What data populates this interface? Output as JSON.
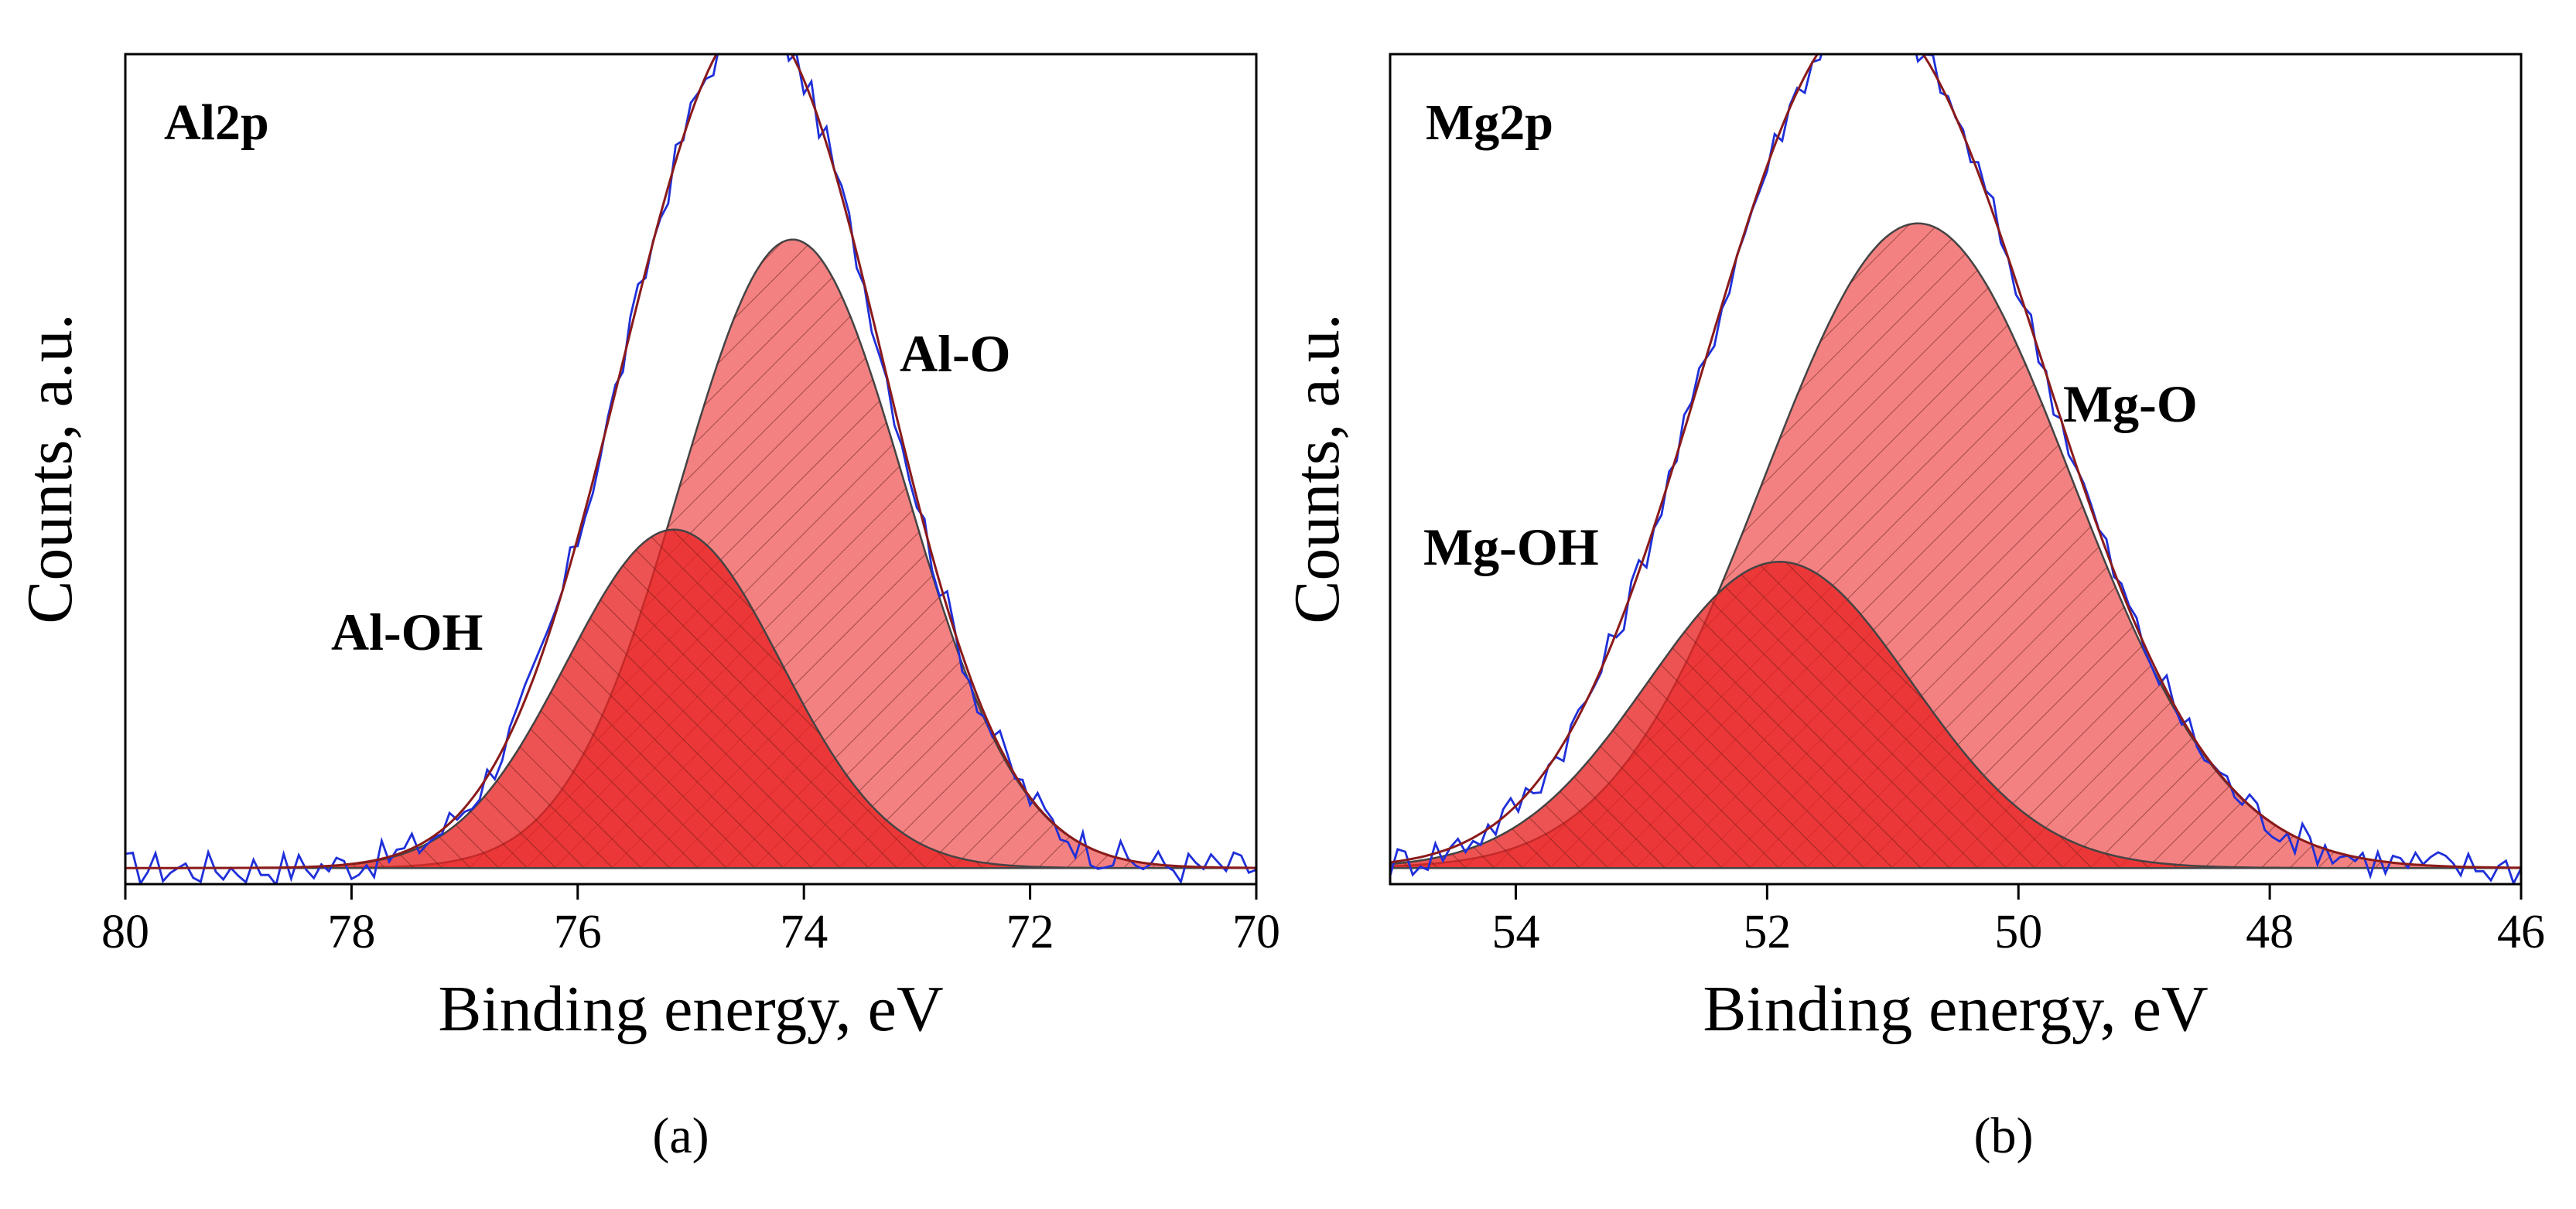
{
  "colors": {
    "measured": "#1f2fd9",
    "envelope": "#8b1a1a",
    "component_fill": "#f26b6b",
    "overlap_fill": "#e82222",
    "component_edge": "#444444",
    "axis": "#000000"
  },
  "chart_data": [
    {
      "type": "line",
      "panel_label": "(a)",
      "title": "Al2p",
      "xlabel": "Binding energy, eV",
      "ylabel": "Counts, a.u.",
      "xlim": [
        80,
        70
      ],
      "x_reversed": true,
      "x_ticks": [
        "80",
        "78",
        "76",
        "74",
        "72",
        "70"
      ],
      "ylim": [
        0,
        1.03
      ],
      "y_ticks": "none",
      "grid": false,
      "background": 0.02,
      "components": [
        {
          "name": "Al-OH",
          "center": 75.15,
          "height": 0.42,
          "sigma": 0.95
        },
        {
          "name": "Al-O",
          "center": 74.1,
          "height": 0.78,
          "sigma": 1.0
        }
      ],
      "annotations": [
        {
          "text": "Al-OH",
          "x": 76.3,
          "y": 0.36
        },
        {
          "text": "Al-O",
          "x": 73.2,
          "y": 0.78
        }
      ],
      "series": [
        {
          "name": "measured",
          "style": "noisy-line"
        },
        {
          "name": "envelope",
          "style": "line"
        }
      ]
    },
    {
      "type": "line",
      "panel_label": "(b)",
      "title": "Mg2p",
      "xlabel": "Binding energy, eV",
      "ylabel": "Counts, a.u.",
      "xlim": [
        55,
        46
      ],
      "x_reversed": true,
      "x_ticks": [
        "54",
        "52",
        "50",
        "48",
        "46"
      ],
      "ylim": [
        0,
        1.03
      ],
      "y_ticks": "none",
      "grid": false,
      "background": 0.02,
      "components": [
        {
          "name": "Mg-OH",
          "center": 51.9,
          "height": 0.38,
          "sigma": 1.05
        },
        {
          "name": "Mg-O",
          "center": 50.8,
          "height": 0.8,
          "sigma": 1.22
        }
      ],
      "annotations": [
        {
          "text": "Mg-OH",
          "x": 54.2,
          "y": 0.47
        },
        {
          "text": "Mg-O",
          "x": 49.2,
          "y": 0.68
        }
      ],
      "series": [
        {
          "name": "measured",
          "style": "noisy-line"
        },
        {
          "name": "envelope",
          "style": "line"
        }
      ]
    }
  ]
}
